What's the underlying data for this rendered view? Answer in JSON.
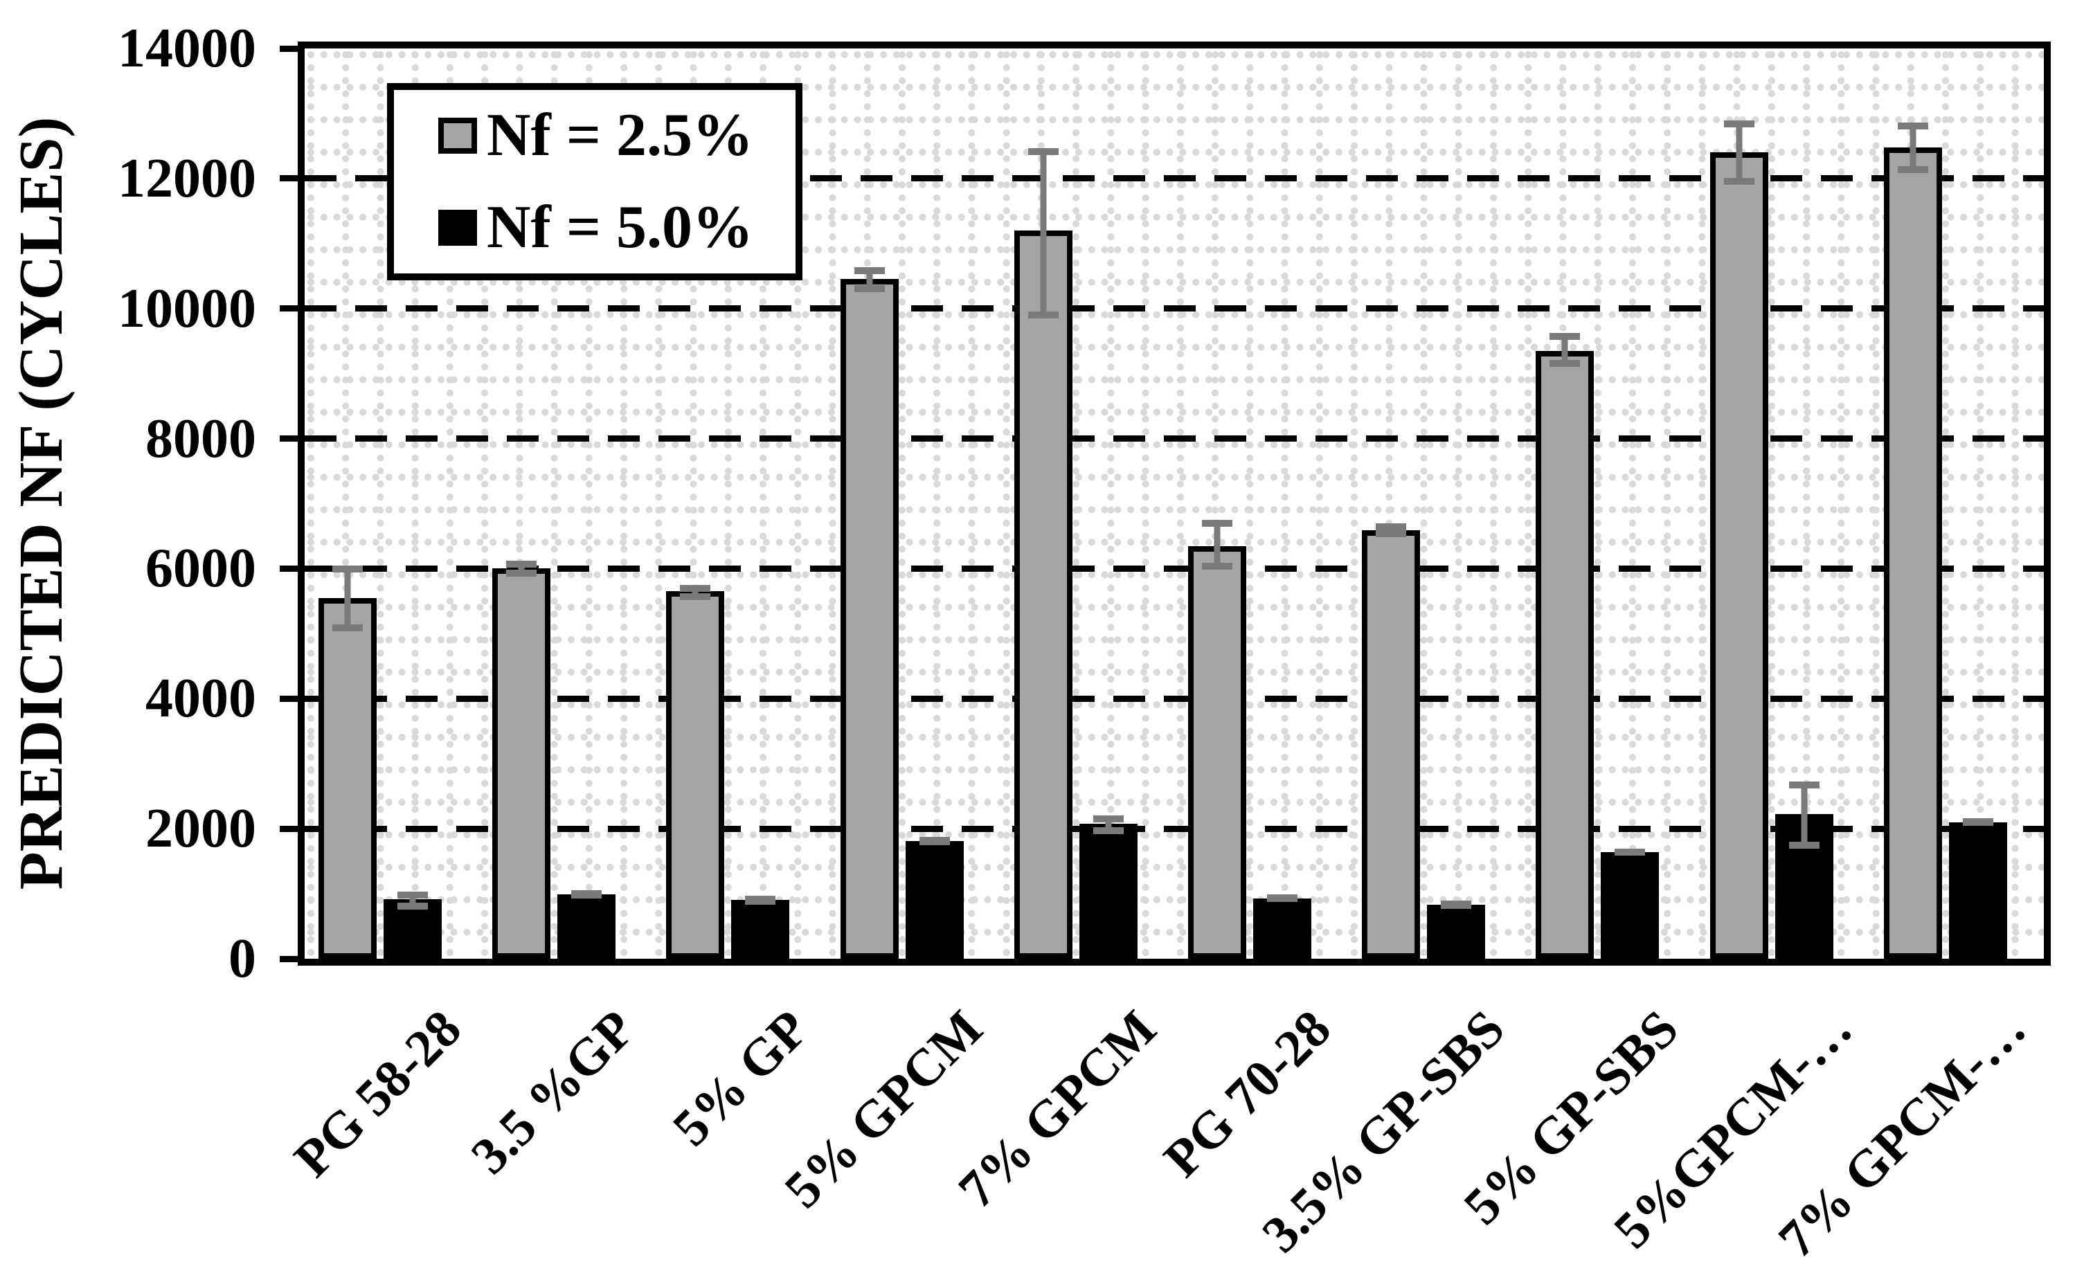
{
  "y_axis": {
    "title": "PREDICTED NF (CYCLES)",
    "ticks": [
      0,
      2000,
      4000,
      6000,
      8000,
      10000,
      12000,
      14000
    ]
  },
  "legend": {
    "items": [
      {
        "label": "Nf = 2.5%",
        "swatch_color": "#a5a5a5"
      },
      {
        "label": "Nf = 5.0%",
        "swatch_color": "#000000"
      }
    ]
  },
  "colors": {
    "gray_series": "#a5a5a5",
    "black_series": "#000000",
    "error_bar": "#7a7a7a",
    "major_gridline": "#000000",
    "minor_grid_dots": "#d9d9d9",
    "plot_border": "#000000",
    "background": "#ffffff"
  },
  "chart_data": {
    "type": "bar",
    "title": "",
    "xlabel": "",
    "ylabel": "PREDICTED NF (CYCLES)",
    "ylim": [
      0,
      14000
    ],
    "ytick_interval": 2000,
    "grid": "major horizontal black dashed lines at every 2000; light gray dotted minor grid rows and columns",
    "legend_position": "inside top-left",
    "bar_style": "grouped vertical bars with thick black outlines and gray error bars (whisker caps)",
    "categories": [
      "PG 58-28",
      "3.5 %GP",
      "5% GP",
      "5% GPCM",
      "7% GPCM",
      "PG 70-28",
      "3.5% GP-SBS",
      "5% GP-SBS",
      "5%GPCM-…",
      "7% GPCM-…"
    ],
    "series": [
      {
        "name": "Nf = 2.5%",
        "color": "#a5a5a5",
        "values": [
          5550,
          6000,
          5650,
          10450,
          11200,
          6350,
          6590,
          9350,
          12400,
          12480
        ],
        "error_up": [
          500,
          120,
          100,
          190,
          1270,
          400,
          110,
          270,
          490,
          380
        ],
        "error_down": [
          510,
          120,
          140,
          200,
          1350,
          370,
          110,
          250,
          500,
          400
        ]
      },
      {
        "name": "Nf = 5.0%",
        "color": "#000000",
        "values": [
          920,
          990,
          900,
          1810,
          2080,
          930,
          830,
          1640,
          2230,
          2100
        ],
        "error_up": [
          110,
          40,
          40,
          60,
          120,
          50,
          60,
          50,
          500,
          60
        ],
        "error_down": [
          160,
          40,
          40,
          60,
          160,
          50,
          60,
          50,
          540,
          60
        ]
      }
    ]
  }
}
